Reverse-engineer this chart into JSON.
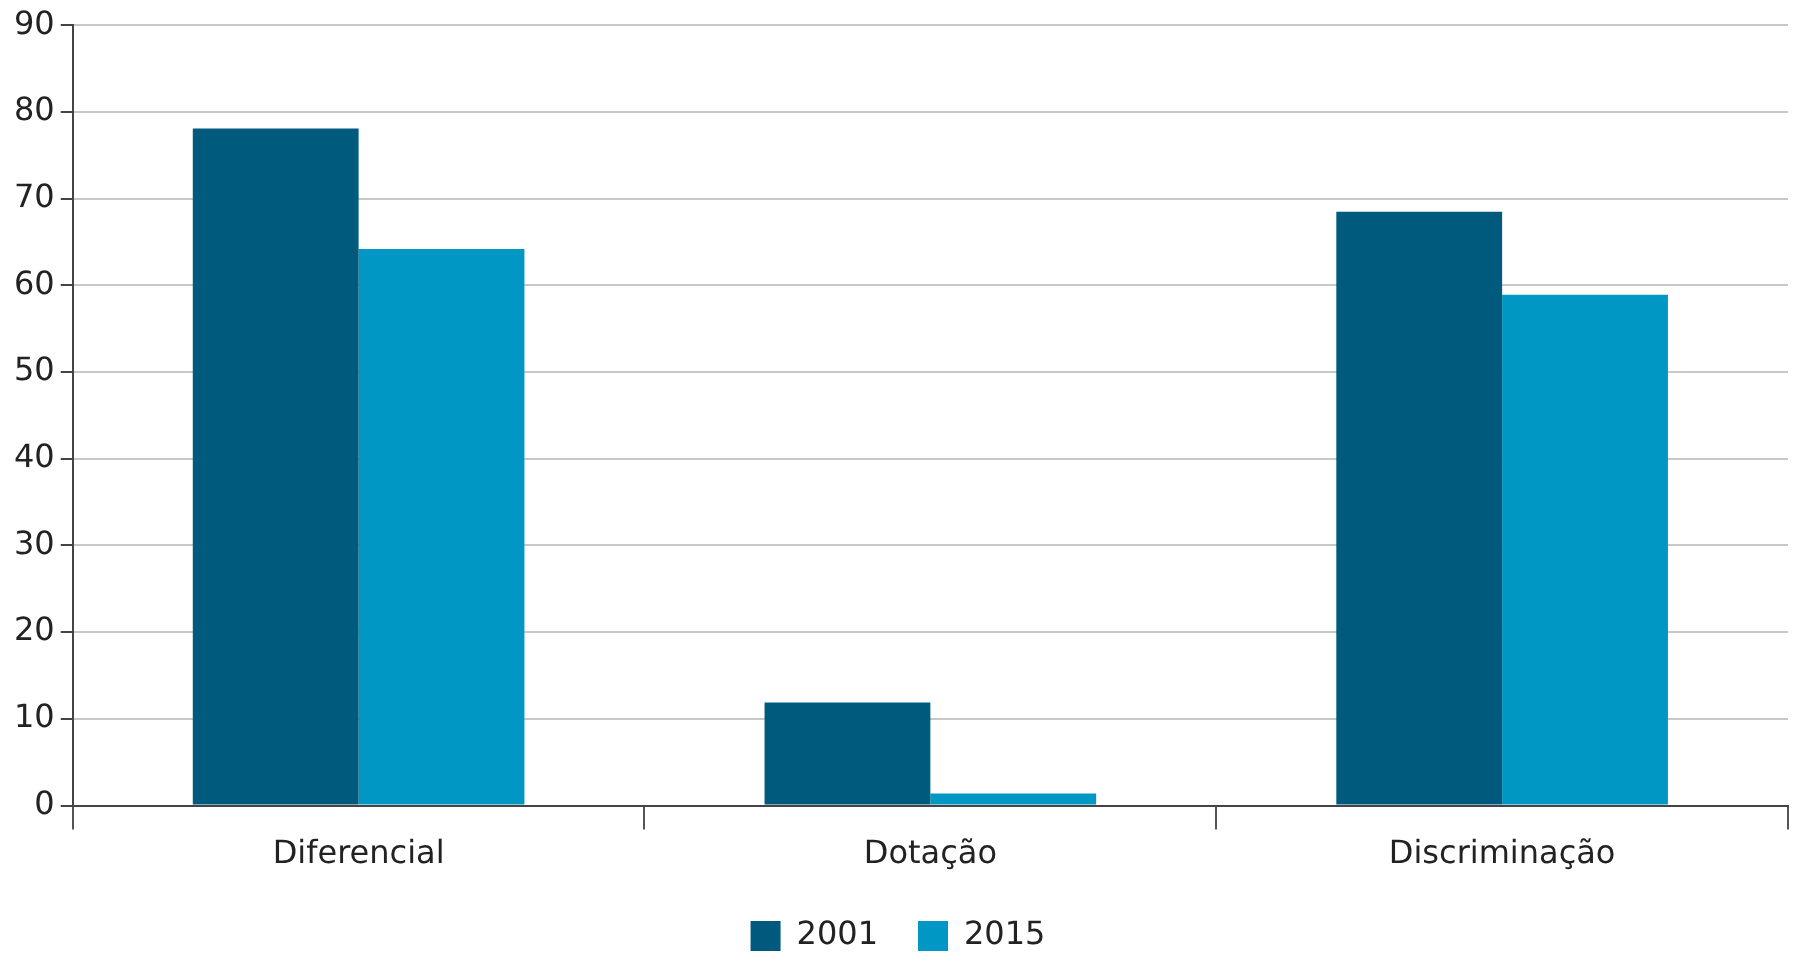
{
  "chart_data": {
    "type": "bar",
    "categories": [
      "Diferencial",
      "Dotação",
      "Discriminação"
    ],
    "series": [
      {
        "name": "2001",
        "color": "#005a7e",
        "values": [
          78.1,
          11.9,
          68.5
        ]
      },
      {
        "name": "2015",
        "color": "#0097c4",
        "values": [
          64.2,
          1.4,
          58.9
        ]
      }
    ],
    "ylim": [
      0,
      90
    ],
    "yticks": [
      0,
      10,
      20,
      30,
      40,
      50,
      60,
      70,
      80,
      90
    ],
    "grid": "y",
    "legend": "bottom"
  }
}
